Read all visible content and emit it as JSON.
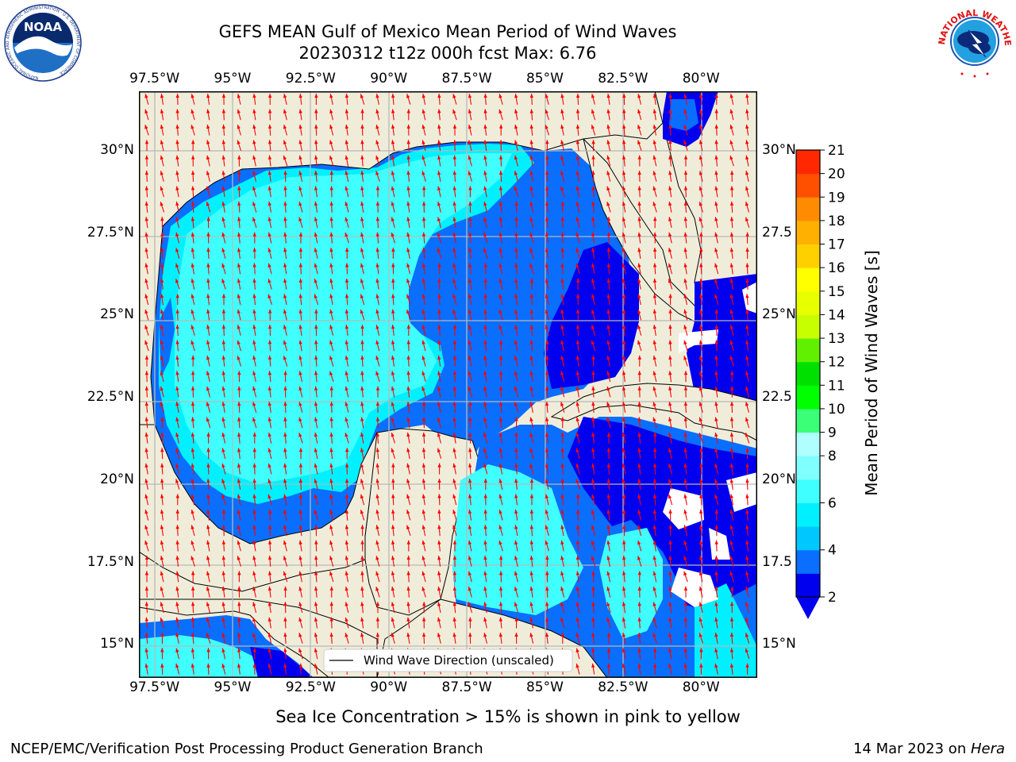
{
  "title_line1": "GEFS MEAN Gulf of Mexico Mean Period of Wind Waves",
  "title_line2": "20230312 t12z 000h fcst   Max: 6.76",
  "logos": {
    "left": {
      "name": "NOAA",
      "ring_text": "NATIONAL OCEANIC AND ATMOSPHERIC ADMINISTRATION · U.S. DEPARTMENT OF COMMERCE"
    },
    "right": {
      "ring_text": "NATIONAL WEATHER SERVICE"
    }
  },
  "legend_label": "Wind Wave Direction (unscaled)",
  "caption": "Sea Ice Concentration > 15% is shown in pink to yellow",
  "footer_left": "NCEP/EMC/Verification Post Processing Product Generation Branch",
  "footer_right_prefix": "14 Mar 2023 on ",
  "footer_right_host": "Hera",
  "chart_data": {
    "type": "heatmap",
    "title": "GEFS MEAN Gulf of Mexico Mean Period of Wind Waves",
    "subtitle": "20230312 t12z 000h fcst   Max: 6.76",
    "projection": "PlateCarree",
    "lon_range": [
      -98,
      -78.2
    ],
    "lat_range": [
      14,
      31.8
    ],
    "lon_ticks": [
      "97.5°W",
      "95°W",
      "92.5°W",
      "90°W",
      "87.5°W",
      "85°W",
      "82.5°W",
      "80°W"
    ],
    "lat_ticks_left": [
      "30°N",
      "27.5°N",
      "25°N",
      "22.5°N",
      "20°N",
      "17.5°N",
      "15°N"
    ],
    "lat_ticks_right": [
      "30°N",
      "27.5",
      "25°N",
      "22.5",
      "20°N",
      "17.5",
      "15°N"
    ],
    "grid": true,
    "colorbar": {
      "label": "Mean Period of Wind Waves [s]",
      "levels": [
        2,
        3,
        4,
        5,
        6,
        7,
        8,
        9,
        10,
        11,
        12,
        13,
        14,
        15,
        16,
        17,
        18,
        19,
        20,
        21
      ],
      "tick_labels": [
        "2",
        "4",
        "6",
        "8",
        "9",
        "10",
        "11",
        "12",
        "13",
        "14",
        "15",
        "16",
        "17",
        "18",
        "19",
        "20",
        "21"
      ],
      "colors": [
        "#0000ee",
        "#0a6eff",
        "#00c8ff",
        "#00f0ff",
        "#40ffff",
        "#80ffff",
        "#b0ffff",
        "#3cff78",
        "#00ff00",
        "#00e000",
        "#60f000",
        "#c8ff00",
        "#e8ff00",
        "#ffff00",
        "#ffd000",
        "#ffb000",
        "#ff8c00",
        "#ff5000",
        "#ff2800",
        "#ff0000"
      ],
      "extend": "min"
    },
    "field_summary": {
      "max": 6.76,
      "western_gulf_seconds": "4-6",
      "eastern_gulf_seconds": "3-4",
      "caribbean_seconds": "2-3",
      "nearshore_south_seconds": "2-3"
    },
    "arrows": {
      "color": "#ff0000",
      "meaning": "Wind Wave Direction (unscaled)",
      "dominant_direction": "toward north-northwest (southerly flow)"
    },
    "legend": "lower-center"
  }
}
